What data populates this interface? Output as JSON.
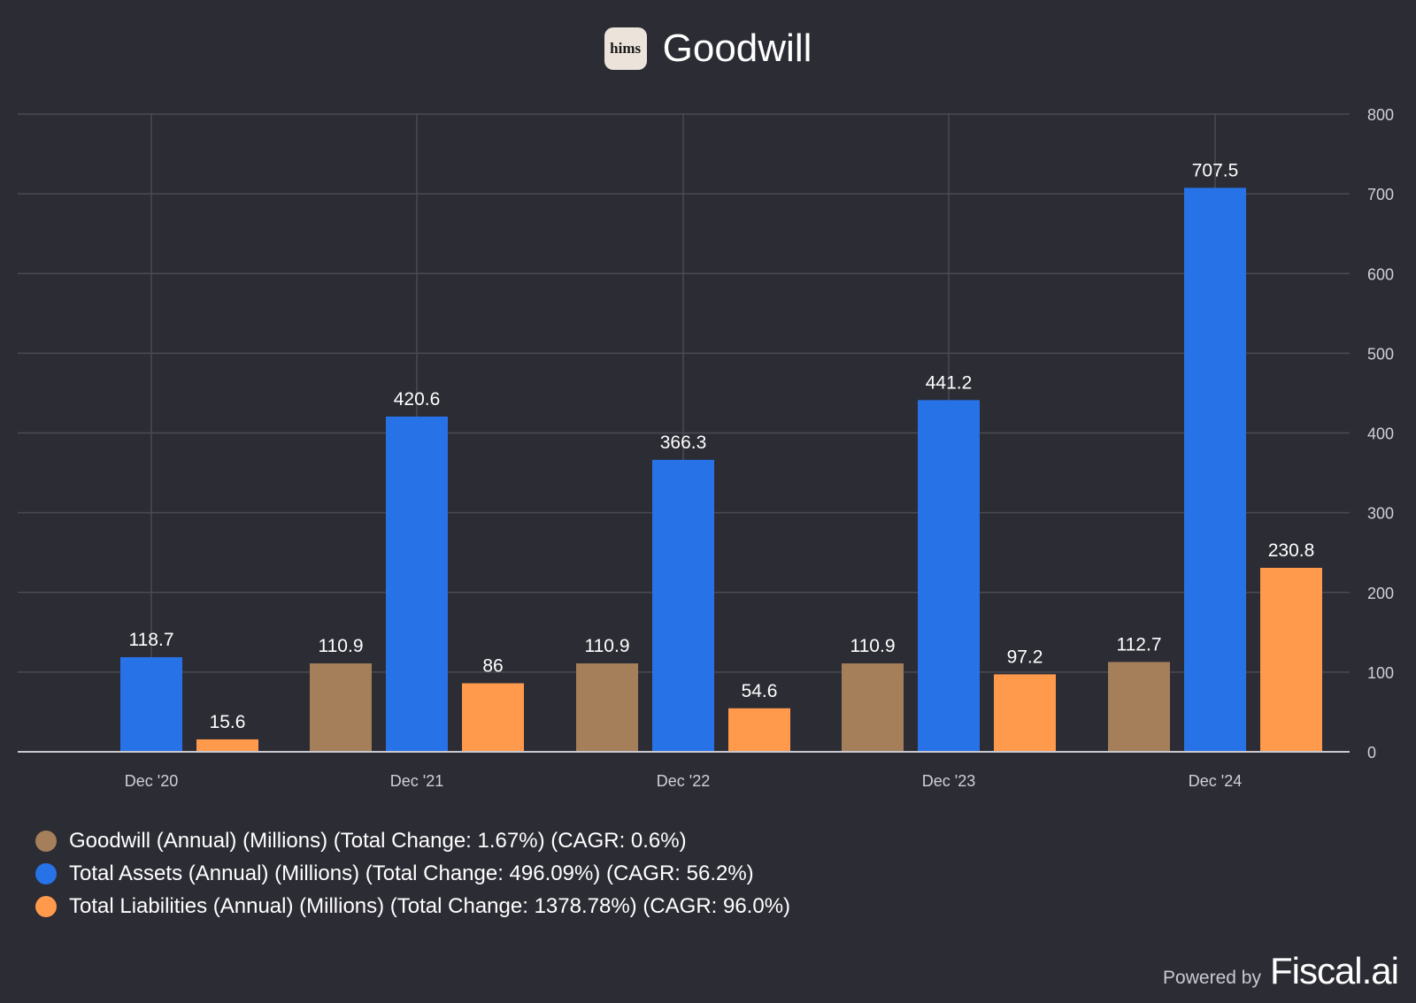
{
  "header": {
    "logo_text": "hims",
    "title": "Goodwill"
  },
  "colors": {
    "background": "#2c2c35",
    "grid": "#4a4a55",
    "axis_text": "#d0d0d6",
    "label_text": "#ffffff"
  },
  "chart_data": {
    "type": "bar",
    "title": "Goodwill",
    "categories": [
      "Dec '20",
      "Dec '21",
      "Dec '22",
      "Dec '23",
      "Dec '24"
    ],
    "ylim": [
      0,
      800
    ],
    "yticks": [
      0,
      100,
      200,
      300,
      400,
      500,
      600,
      700,
      800
    ],
    "y_axis_side": "right",
    "grid": true,
    "legend_placement": "bottom-left",
    "series": [
      {
        "name": "Goodwill (Annual) (Millions) (Total Change: 1.67%) (CAGR: 0.6%)",
        "color": "#a57f5a",
        "values": [
          null,
          110.9,
          110.9,
          110.9,
          112.7
        ],
        "labels": [
          "",
          "110.9",
          "110.9",
          "110.9",
          "112.7"
        ]
      },
      {
        "name": "Total Assets (Annual) (Millions) (Total Change: 496.09%) (CAGR: 56.2%)",
        "color": "#2872e8",
        "values": [
          118.7,
          420.6,
          366.3,
          441.2,
          707.5
        ],
        "labels": [
          "118.7",
          "420.6",
          "366.3",
          "441.2",
          "707.5"
        ]
      },
      {
        "name": "Total Liabilities (Annual) (Millions) (Total Change: 1378.78%) (CAGR: 96.0%)",
        "color": "#ff9a4d",
        "values": [
          15.6,
          86,
          54.6,
          97.2,
          230.8
        ],
        "labels": [
          "15.6",
          "86",
          "54.6",
          "97.2",
          "230.8"
        ]
      }
    ]
  },
  "footer": {
    "powered_by": "Powered by",
    "brand": "Fiscal.ai"
  }
}
